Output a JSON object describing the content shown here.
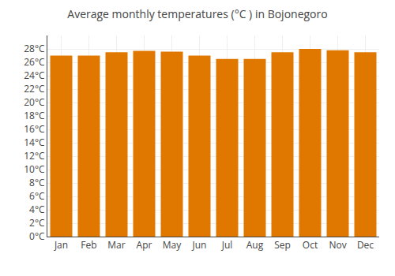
{
  "chart_data": {
    "type": "bar",
    "title": "Average monthly temperatures (°C ) in Bojonegoro",
    "categories": [
      "Jan",
      "Feb",
      "Mar",
      "Apr",
      "May",
      "Jun",
      "Jul",
      "Aug",
      "Sep",
      "Oct",
      "Nov",
      "Dec"
    ],
    "values": [
      27.0,
      27.0,
      27.5,
      27.7,
      27.6,
      27.0,
      26.5,
      26.5,
      27.5,
      28.0,
      27.8,
      27.5
    ],
    "color": "#E07800",
    "ylim": [
      0,
      30
    ],
    "yticks": [
      {
        "value": 0,
        "label": "0°C"
      },
      {
        "value": 2,
        "label": "2°C"
      },
      {
        "value": 4,
        "label": "4°C"
      },
      {
        "value": 6,
        "label": "6°C"
      },
      {
        "value": 8,
        "label": "8°C"
      },
      {
        "value": 10,
        "label": "10°C"
      },
      {
        "value": 12,
        "label": "12°C"
      },
      {
        "value": 14,
        "label": "14°C"
      },
      {
        "value": 16,
        "label": "16°C"
      },
      {
        "value": 18,
        "label": "18°C"
      },
      {
        "value": 20,
        "label": "20°C"
      },
      {
        "value": 22,
        "label": "22°C"
      },
      {
        "value": 24,
        "label": "24°C"
      },
      {
        "value": 26,
        "label": "26°C"
      },
      {
        "value": 28,
        "label": "28°C"
      }
    ],
    "grid": true
  }
}
